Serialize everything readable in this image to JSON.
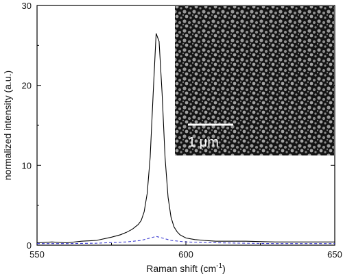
{
  "chart_data": {
    "type": "line",
    "xlabel": "Raman shift (cm",
    "xlabel_sup": "-1",
    "xlabel_suffix": ")",
    "ylabel": "normalized intensity (a.u.)",
    "xlim": [
      550,
      650
    ],
    "ylim": [
      0,
      30
    ],
    "x_ticks": [
      550,
      600,
      650
    ],
    "y_ticks": [
      0,
      10,
      20,
      30
    ],
    "grid": false,
    "series": [
      {
        "style": "solid",
        "color": "#000000",
        "x": [
          550,
          555,
          560,
          565,
          570,
          575,
          578,
          580,
          582,
          584,
          585,
          586,
          587,
          588,
          589,
          590,
          591,
          592,
          593,
          594,
          595,
          596,
          597,
          598,
          600,
          603,
          606,
          610,
          620,
          630,
          640,
          650
        ],
        "y": [
          0.3,
          0.4,
          0.3,
          0.5,
          0.6,
          1.0,
          1.3,
          1.6,
          2.0,
          2.6,
          3.1,
          4.2,
          6.5,
          11.0,
          19.0,
          26.5,
          25.5,
          19.0,
          11.0,
          6.0,
          3.5,
          2.3,
          1.7,
          1.3,
          0.9,
          0.7,
          0.6,
          0.5,
          0.5,
          0.4,
          0.4,
          0.4
        ]
      },
      {
        "style": "dashed",
        "color": "#3a3ad0",
        "x": [
          550,
          560,
          570,
          580,
          585,
          588,
          590,
          592,
          595,
          600,
          610,
          620,
          630,
          640,
          650
        ],
        "y": [
          0.2,
          0.2,
          0.25,
          0.4,
          0.6,
          0.9,
          1.1,
          0.9,
          0.6,
          0.4,
          0.3,
          0.25,
          0.2,
          0.2,
          0.2
        ]
      }
    ]
  },
  "inset": {
    "scale_bar_label": "1 μm"
  }
}
